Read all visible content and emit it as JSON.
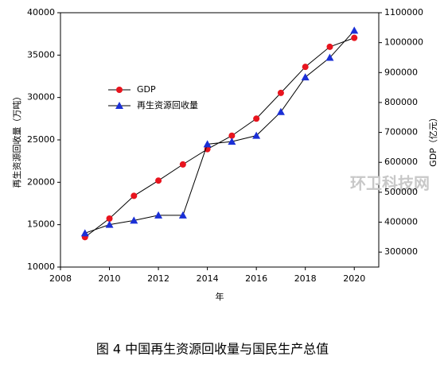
{
  "chart_data": {
    "type": "line",
    "x_label": "年",
    "y_label": "再生资源回收量（万吨）",
    "y2_label": "GDP（亿元）",
    "caption": "图 4 中国再生资源回收量与国民生产总值",
    "watermark": "环卫科技网",
    "x": [
      2009,
      2010,
      2011,
      2012,
      2013,
      2014,
      2015,
      2016,
      2017,
      2018,
      2019,
      2020
    ],
    "series": [
      {
        "name": "GDP",
        "color": "#e8141e",
        "marker": "circle",
        "axis": "y2",
        "values": [
          350000,
          412000,
          488000,
          539000,
          593000,
          644000,
          689000,
          746000,
          832000,
          919000,
          986000,
          1016000
        ]
      },
      {
        "name": "再生资源回收量",
        "color": "#1a2fd6",
        "marker": "triangle",
        "axis": "y",
        "values": [
          14000,
          15000,
          15500,
          16100,
          16100,
          24500,
          24800,
          25500,
          28300,
          32400,
          34700,
          37900
        ]
      }
    ],
    "xlim": [
      2008,
      2021
    ],
    "xticks": [
      2008,
      2010,
      2012,
      2014,
      2016,
      2018,
      2020
    ],
    "ylim": [
      10000,
      40000
    ],
    "yticks": [
      10000,
      15000,
      20000,
      25000,
      30000,
      35000,
      40000
    ],
    "y2lim": [
      250000,
      1100000
    ],
    "y2ticks": [
      300000,
      400000,
      500000,
      600000,
      700000,
      800000,
      900000,
      1000000,
      1100000
    ]
  }
}
